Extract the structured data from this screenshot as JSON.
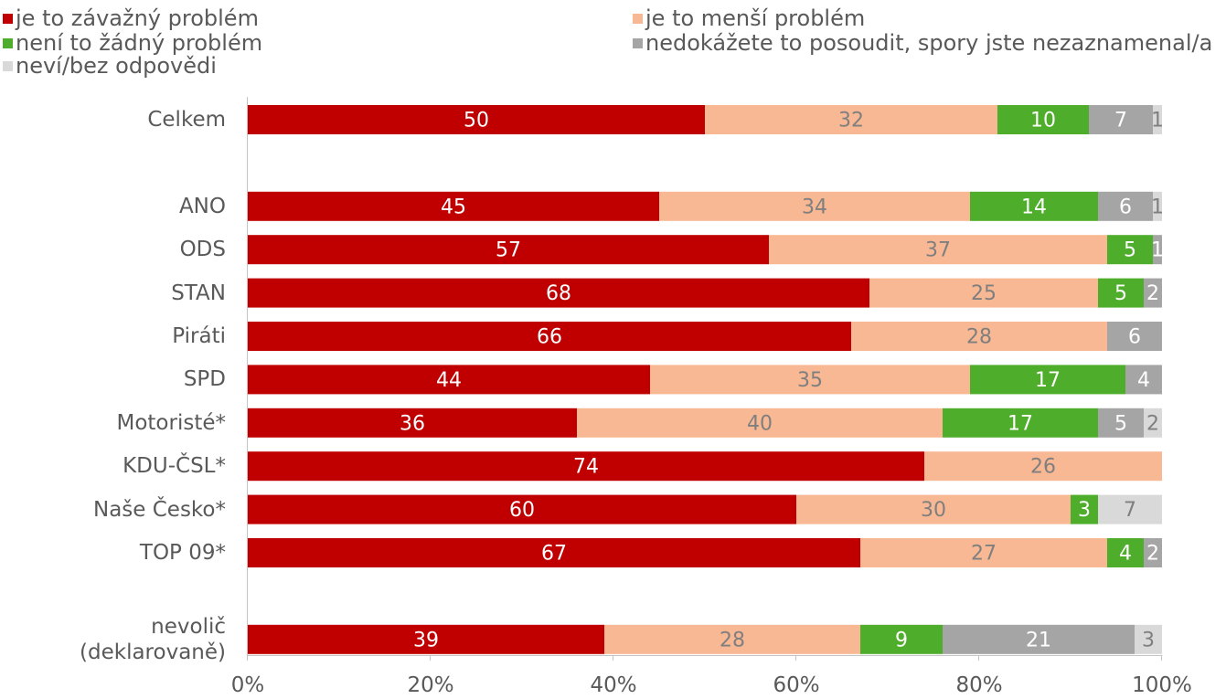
{
  "chart_data": {
    "type": "bar",
    "orientation": "horizontal",
    "stacked": "percent",
    "categories": [
      "Celkem",
      "",
      "ANO",
      "ODS",
      "STAN",
      "Piráti",
      "SPD",
      "Motoristé*",
      "KDU-ČSL*",
      "Naše Česko*",
      "TOP 09*",
      "",
      "nevolič\n(deklarovaně)"
    ],
    "series": [
      {
        "name": "je to závažný problém",
        "color": "#C00000",
        "values": [
          50,
          null,
          45,
          57,
          68,
          66,
          44,
          36,
          74,
          60,
          67,
          null,
          39
        ]
      },
      {
        "name": "je to menší problém",
        "color": "#F8B894",
        "values": [
          32,
          null,
          34,
          37,
          25,
          28,
          35,
          40,
          26,
          30,
          27,
          null,
          28
        ]
      },
      {
        "name": "není to žádný problém",
        "color": "#4EAD2A",
        "values": [
          10,
          null,
          14,
          5,
          5,
          null,
          17,
          17,
          null,
          3,
          4,
          null,
          9
        ]
      },
      {
        "name": "nedokážete to posoudit, spory jste nezaznamenal/a",
        "color": "#A5A5A5",
        "values": [
          7,
          null,
          6,
          1,
          2,
          6,
          4,
          5,
          null,
          null,
          2,
          null,
          21
        ]
      },
      {
        "name": "neví/bez odpovědi",
        "color": "#D9D9D9",
        "values": [
          1,
          null,
          1,
          null,
          null,
          null,
          null,
          2,
          null,
          7,
          null,
          null,
          3
        ]
      }
    ],
    "xlim": [
      0,
      100
    ],
    "x_ticks": [
      "0%",
      "20%",
      "40%",
      "60%",
      "80%",
      "100%"
    ],
    "legend_position": "top",
    "grid": false
  }
}
